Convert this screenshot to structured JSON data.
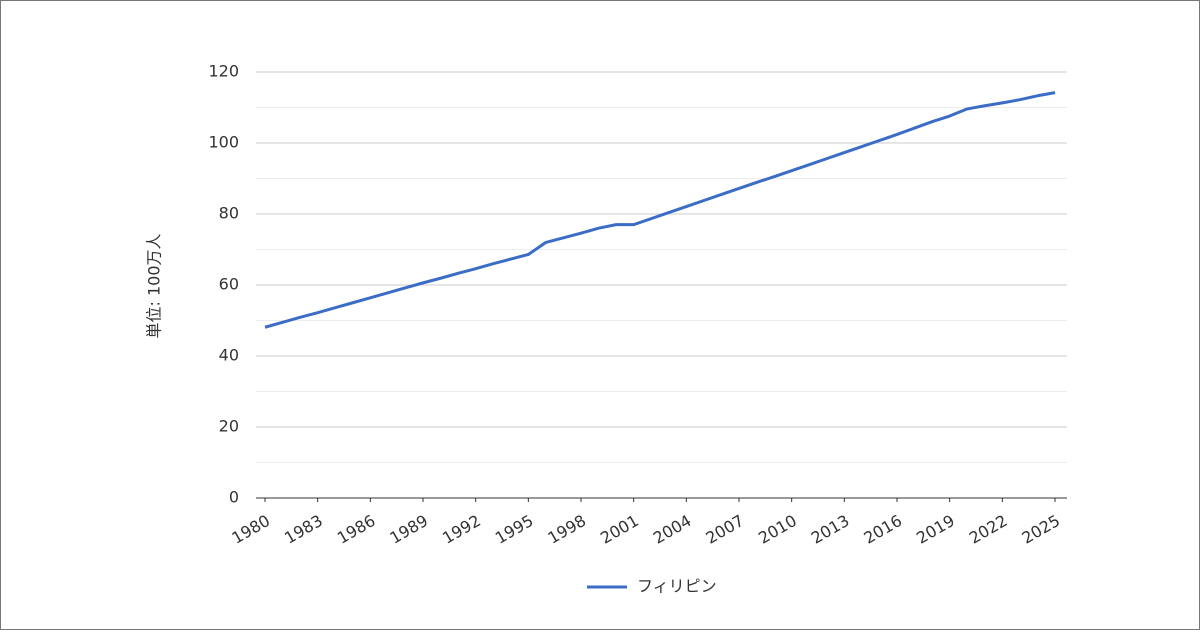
{
  "chart_data": {
    "type": "line",
    "y_label": "単位: 100万人",
    "x": [
      1980,
      1981,
      1982,
      1983,
      1984,
      1985,
      1986,
      1987,
      1988,
      1989,
      1990,
      1991,
      1992,
      1993,
      1994,
      1995,
      1996,
      1997,
      1998,
      1999,
      2000,
      2001,
      2002,
      2003,
      2004,
      2005,
      2006,
      2007,
      2008,
      2009,
      2010,
      2011,
      2012,
      2013,
      2014,
      2015,
      2016,
      2017,
      2018,
      2019,
      2020,
      2021,
      2022,
      2023,
      2024,
      2025
    ],
    "series": [
      {
        "name": "フィリピン",
        "color": "#3b6cc6",
        "values": [
          48.1,
          49.5,
          50.9,
          52.2,
          53.6,
          55.0,
          56.4,
          57.8,
          59.2,
          60.6,
          61.9,
          63.3,
          64.6,
          66.0,
          67.3,
          68.6,
          72.0,
          73.3,
          74.6,
          76.0,
          77.0,
          77.0,
          78.7,
          80.4,
          82.1,
          83.8,
          85.5,
          87.2,
          88.9,
          90.5,
          92.2,
          93.9,
          95.6,
          97.3,
          99.0,
          100.7,
          102.4,
          104.2,
          106.0,
          107.6,
          109.6,
          110.5,
          111.3,
          112.2,
          113.3,
          114.2
        ]
      }
    ],
    "xlim": [
      1980,
      2025
    ],
    "xticks": [
      1980,
      1983,
      1986,
      1989,
      1992,
      1995,
      1998,
      2001,
      2004,
      2007,
      2010,
      2013,
      2016,
      2019,
      2022,
      2025
    ],
    "ylim": [
      0,
      120
    ],
    "yticks": [
      0,
      20,
      40,
      60,
      80,
      100,
      120
    ],
    "yminor": [
      10,
      30,
      50,
      70,
      90,
      110
    ],
    "grid": true,
    "legend": "bottom"
  }
}
